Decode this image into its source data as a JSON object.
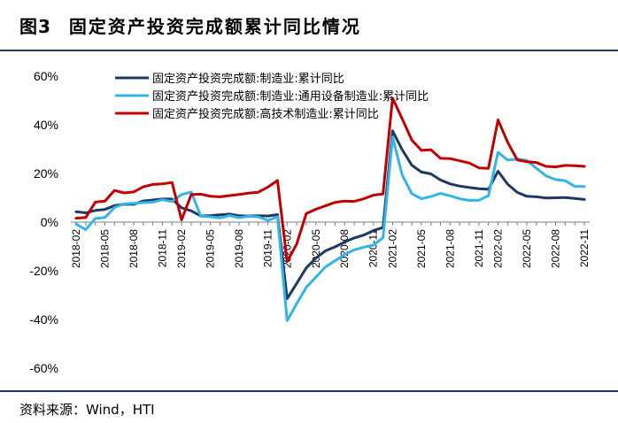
{
  "figure": {
    "label": "图3",
    "title": "固定资产投资完成额累计同比情况",
    "source": "资料来源：Wind，HTI"
  },
  "chart_data": {
    "type": "line",
    "ylim": [
      -0.6,
      0.6
    ],
    "yticks": [
      -0.6,
      -0.4,
      -0.2,
      0,
      0.2,
      0.4,
      0.6
    ],
    "ytick_labels": [
      "-60%",
      "-40%",
      "-20%",
      "0%",
      "20%",
      "40%",
      "60%"
    ],
    "x": [
      "2018-02",
      "2018-03",
      "2018-04",
      "2018-05",
      "2018-06",
      "2018-07",
      "2018-08",
      "2018-09",
      "2018-10",
      "2018-11",
      "2018-12",
      "2019-02",
      "2019-03",
      "2019-04",
      "2019-05",
      "2019-06",
      "2019-07",
      "2019-08",
      "2019-09",
      "2019-10",
      "2019-11",
      "2019-12",
      "2020-02",
      "2020-03",
      "2020-04",
      "2020-05",
      "2020-06",
      "2020-07",
      "2020-08",
      "2020-09",
      "2020-10",
      "2020-11",
      "2020-12",
      "2021-02",
      "2021-03",
      "2021-04",
      "2021-05",
      "2021-06",
      "2021-07",
      "2021-08",
      "2021-09",
      "2021-10",
      "2021-11",
      "2021-12",
      "2022-02",
      "2022-03",
      "2022-04",
      "2022-05",
      "2022-06",
      "2022-07",
      "2022-08",
      "2022-09",
      "2022-10",
      "2022-11"
    ],
    "xtick_labels": [
      "2018-02",
      "2018-05",
      "2018-08",
      "2018-11",
      "2019-02",
      "2019-05",
      "2019-08",
      "2019-11",
      "2020-02",
      "2020-05",
      "2020-08",
      "2020-11",
      "2021-02",
      "2021-05",
      "2021-08",
      "2021-11",
      "2022-02",
      "2022-05",
      "2022-08",
      "2022-11"
    ],
    "series": [
      {
        "name": "固定资产投资完成额:制造业:累计同比",
        "color": "#1f3864",
        "values": [
          0.043,
          0.038,
          0.048,
          0.052,
          0.068,
          0.073,
          0.073,
          0.087,
          0.091,
          0.095,
          0.095,
          0.059,
          0.046,
          0.025,
          0.027,
          0.03,
          0.033,
          0.026,
          0.025,
          0.026,
          0.025,
          0.031,
          -0.315,
          -0.252,
          -0.188,
          -0.148,
          -0.118,
          -0.102,
          -0.082,
          -0.065,
          -0.053,
          -0.035,
          -0.022,
          0.375,
          0.298,
          0.234,
          0.206,
          0.198,
          0.173,
          0.157,
          0.148,
          0.142,
          0.137,
          0.135,
          0.209,
          0.156,
          0.122,
          0.106,
          0.104,
          0.099,
          0.1,
          0.101,
          0.097,
          0.093
        ]
      },
      {
        "name": "固定资产投资完成额:制造业:通用设备制造业:累计同比",
        "color": "#33b5e5",
        "values": [
          -0.008,
          -0.031,
          0.015,
          0.019,
          0.06,
          0.075,
          0.077,
          0.08,
          0.082,
          0.092,
          0.085,
          0.113,
          0.124,
          0.024,
          0.022,
          0.017,
          0.027,
          0.018,
          0.024,
          0.022,
          0.007,
          0.022,
          -0.405,
          -0.335,
          -0.268,
          -0.226,
          -0.184,
          -0.159,
          -0.133,
          -0.114,
          -0.103,
          -0.095,
          -0.064,
          0.35,
          0.194,
          0.117,
          0.096,
          0.105,
          0.118,
          0.108,
          0.096,
          0.089,
          0.09,
          0.109,
          0.287,
          0.255,
          0.259,
          0.254,
          0.221,
          0.19,
          0.175,
          0.17,
          0.147,
          0.146
        ]
      },
      {
        "name": "固定资产投资完成额:高技术制造业:累计同比",
        "color": "#c00000",
        "values": [
          0.016,
          0.019,
          0.082,
          0.086,
          0.13,
          0.12,
          0.124,
          0.145,
          0.155,
          0.157,
          0.163,
          0.009,
          0.113,
          0.115,
          0.106,
          0.104,
          0.109,
          0.114,
          0.119,
          0.123,
          0.144,
          0.171,
          -0.162,
          -0.09,
          0.035,
          0.053,
          0.067,
          0.081,
          0.086,
          0.085,
          0.096,
          0.111,
          0.116,
          0.509,
          0.425,
          0.337,
          0.295,
          0.297,
          0.262,
          0.261,
          0.252,
          0.243,
          0.223,
          0.221,
          0.42,
          0.328,
          0.256,
          0.248,
          0.245,
          0.229,
          0.227,
          0.233,
          0.232,
          0.229
        ]
      }
    ]
  }
}
